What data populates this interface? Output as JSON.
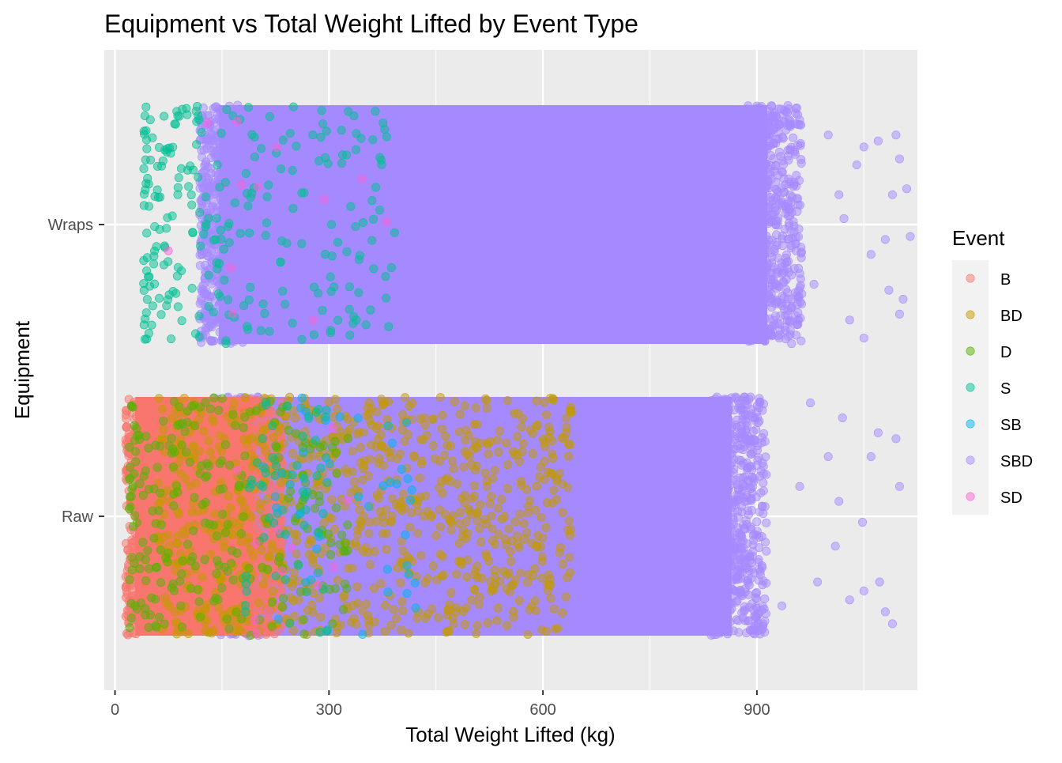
{
  "chart_data": {
    "type": "scatter",
    "title": "Equipment vs Total Weight Lifted by Event Type",
    "xlabel": "Total Weight Lifted (kg)",
    "ylabel": "Equipment",
    "xlim": [
      -15,
      1125
    ],
    "x_ticks": [
      0,
      300,
      600,
      900
    ],
    "x_minor_ticks": [
      150,
      450,
      750,
      1050
    ],
    "categories": [
      "Raw",
      "Wraps"
    ],
    "jitter_height": 0.4,
    "grid": true,
    "point_alpha": 0.5,
    "legend": {
      "title": "Event",
      "position": "right",
      "entries": [
        "B",
        "BD",
        "D",
        "S",
        "SB",
        "SBD",
        "SD"
      ]
    },
    "colors": {
      "B": "#F8766D",
      "BD": "#C49A00",
      "D": "#53B400",
      "S": "#00C094",
      "SB": "#00B6EB",
      "SBD": "#A58AFF",
      "SD": "#FB61D7"
    },
    "series": [
      {
        "name": "SBD",
        "category": "Raw",
        "range": [
          150,
          880
        ],
        "outliers": [
          [
            900,
            0.35
          ],
          [
            935,
            -0.3
          ],
          [
            960,
            0.1
          ],
          [
            975,
            0.38
          ],
          [
            985,
            -0.22
          ],
          [
            1000,
            0.2
          ],
          [
            1010,
            -0.1
          ],
          [
            1020,
            0.33
          ],
          [
            1030,
            -0.28
          ],
          [
            1050,
            -0.25
          ],
          [
            1060,
            0.2
          ],
          [
            1070,
            0.28
          ],
          [
            1072,
            -0.22
          ],
          [
            1080,
            -0.32
          ],
          [
            1100,
            0.1
          ],
          [
            1095,
            0.26
          ],
          [
            1090,
            -0.36
          ],
          [
            1048,
            -0.02
          ],
          [
            1015,
            0.05
          ]
        ]
      },
      {
        "name": "SBD",
        "category": "Wraps",
        "range": [
          130,
          930
        ],
        "outliers": [
          [
            960,
            0.35
          ],
          [
            980,
            -0.2
          ],
          [
            1000,
            0.3
          ],
          [
            1015,
            0.1
          ],
          [
            1030,
            -0.32
          ],
          [
            1040,
            0.2
          ],
          [
            1050,
            0.26
          ],
          [
            1060,
            -0.1
          ],
          [
            1070,
            0.28
          ],
          [
            1080,
            -0.05
          ],
          [
            1090,
            0.1
          ],
          [
            1100,
            0.22
          ],
          [
            1105,
            -0.25
          ],
          [
            1110,
            0.12
          ],
          [
            1115,
            -0.04
          ],
          [
            1100,
            -0.3
          ],
          [
            1095,
            0.3
          ],
          [
            1085,
            -0.22
          ],
          [
            1050,
            -0.38
          ],
          [
            1022,
            0.02
          ]
        ]
      },
      {
        "name": "B",
        "category": "Raw",
        "range": [
          15,
          225
        ]
      },
      {
        "name": "BD",
        "category": "Raw",
        "range": [
          60,
          620
        ],
        "scattered_to": 640
      },
      {
        "name": "D",
        "category": "Raw",
        "range": [
          20,
          330
        ]
      },
      {
        "name": "S",
        "category": "Raw",
        "range": [
          180,
          300
        ]
      },
      {
        "name": "SB",
        "category": "Raw",
        "range": [
          200,
          430
        ]
      },
      {
        "name": "SD",
        "category": "Raw",
        "range": [
          150,
          330
        ]
      },
      {
        "name": "S",
        "category": "Wraps",
        "range": [
          40,
          390
        ],
        "scattered_to": 395
      },
      {
        "name": "SD",
        "category": "Wraps",
        "range": [
          70,
          420
        ]
      }
    ]
  }
}
